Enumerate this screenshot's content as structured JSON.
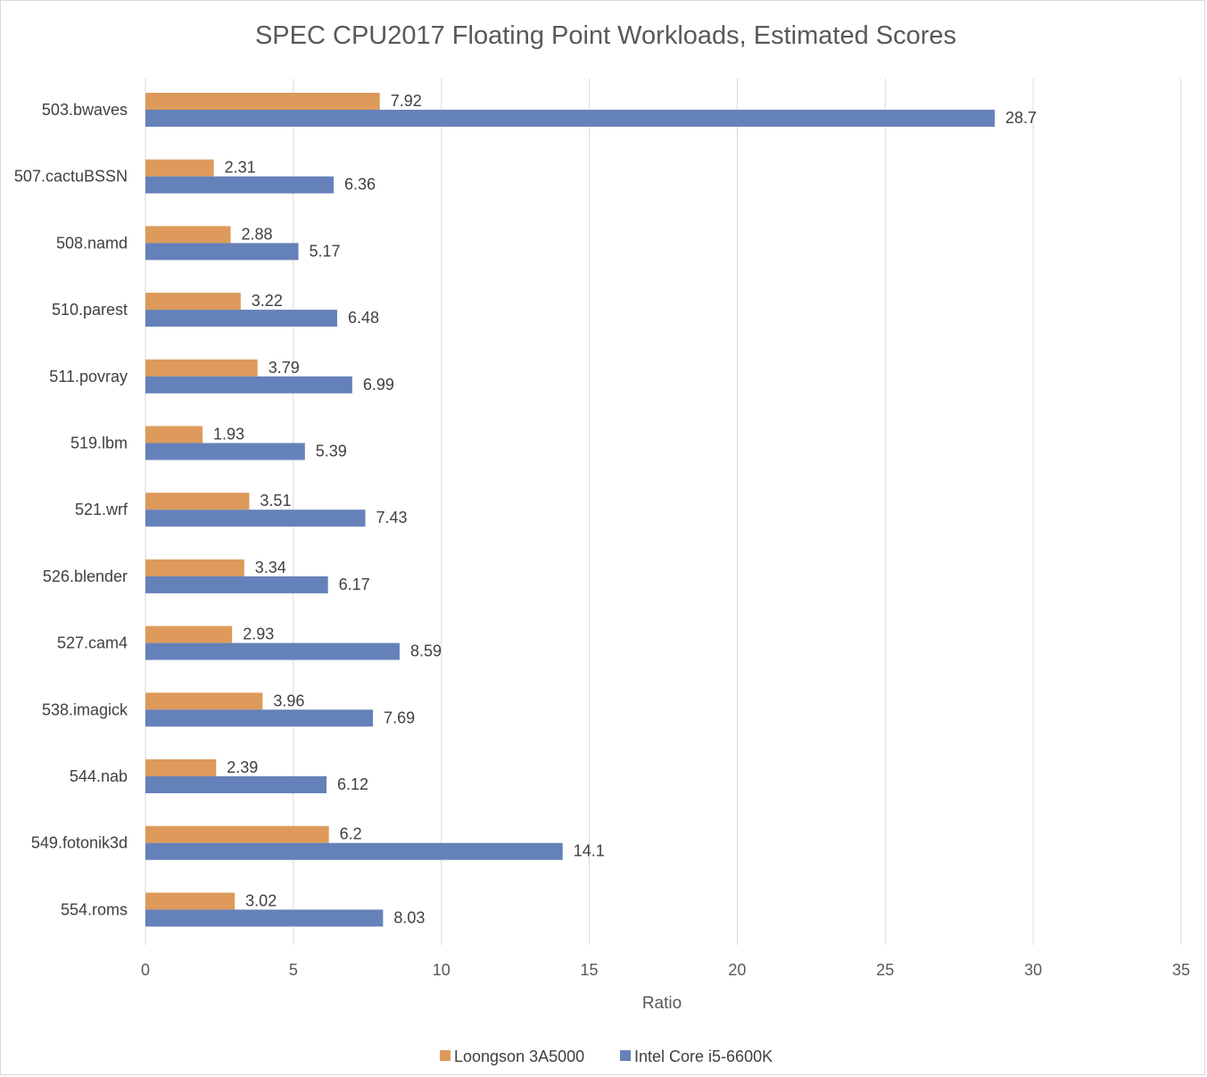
{
  "chart_data": {
    "type": "bar",
    "orientation": "horizontal",
    "title": "SPEC CPU2017 Floating Point Workloads, Estimated Scores",
    "xlabel": "Ratio",
    "ylabel": "",
    "xlim": [
      0,
      35
    ],
    "x_ticks": [
      "0",
      "5",
      "10",
      "15",
      "20",
      "25",
      "30",
      "35"
    ],
    "grid": true,
    "legend_position": "bottom",
    "categories": [
      "503.bwaves",
      "507.cactuBSSN",
      "508.namd",
      "510.parest",
      "511.povray",
      "519.lbm",
      "521.wrf",
      "526.blender",
      "527.cam4",
      "538.imagick",
      "544.nab",
      "549.fotonik3d",
      "554.roms"
    ],
    "series": [
      {
        "name": "Loongson 3A5000",
        "color": "#dd9a5b",
        "values": [
          7.92,
          2.31,
          2.88,
          3.22,
          3.79,
          1.93,
          3.51,
          3.34,
          2.93,
          3.96,
          2.39,
          6.2,
          3.02
        ],
        "labels": [
          "7.92",
          "2.31",
          "2.88",
          "3.22",
          "3.79",
          "1.93",
          "3.51",
          "3.34",
          "2.93",
          "3.96",
          "2.39",
          "6.2",
          "3.02"
        ]
      },
      {
        "name": "Intel Core i5-6600K",
        "color": "#6581b9",
        "values": [
          28.7,
          6.36,
          5.17,
          6.48,
          6.99,
          5.39,
          7.43,
          6.17,
          8.59,
          7.69,
          6.12,
          14.1,
          8.03
        ],
        "labels": [
          "28.7",
          "6.36",
          "5.17",
          "6.48",
          "6.99",
          "5.39",
          "7.43",
          "6.17",
          "8.59",
          "7.69",
          "6.12",
          "14.1",
          "8.03"
        ]
      }
    ]
  }
}
